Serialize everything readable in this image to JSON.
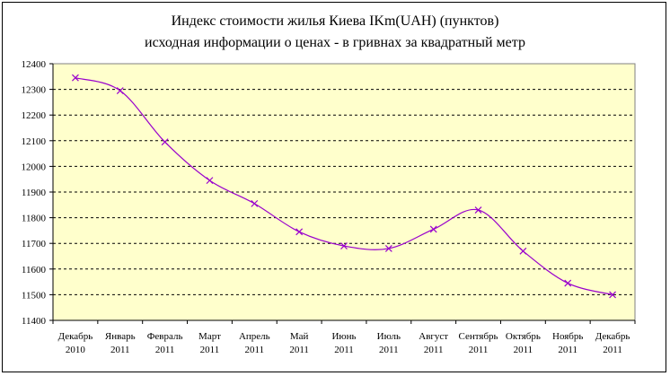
{
  "chart_data": {
    "type": "line",
    "title": "Индекс стоимости жилья Киева   IKm(UAH)    (пунктов)",
    "subtitle": "исходная  информации о ценах - в гривнах за квадратный метр",
    "categories": [
      [
        "Декабрь",
        "2010"
      ],
      [
        "Январь",
        "2011"
      ],
      [
        "Февраль",
        "2011"
      ],
      [
        "Март",
        "2011"
      ],
      [
        "Апрель",
        "2011"
      ],
      [
        "Май",
        "2011"
      ],
      [
        "Июнь",
        "2011"
      ],
      [
        "Июль",
        "2011"
      ],
      [
        "Август",
        "2011"
      ],
      [
        "Сентябрь",
        "2011"
      ],
      [
        "Октябрь",
        "2011"
      ],
      [
        "Ноябрь",
        "2011"
      ],
      [
        "Декабрь",
        "2011"
      ]
    ],
    "series": [
      {
        "values": [
          12345,
          12295,
          12095,
          11945,
          11855,
          11745,
          11690,
          11680,
          11755,
          11830,
          11670,
          11545,
          11500
        ],
        "color": "#9900cc",
        "marker": "x"
      }
    ],
    "ylim": [
      11400,
      12400
    ],
    "yticks": [
      11400,
      11500,
      11600,
      11700,
      11800,
      11900,
      12000,
      12100,
      12200,
      12300,
      12400
    ],
    "grid": "horizontal-dashed",
    "plot_background": "#ffffcc",
    "legend": "none"
  }
}
